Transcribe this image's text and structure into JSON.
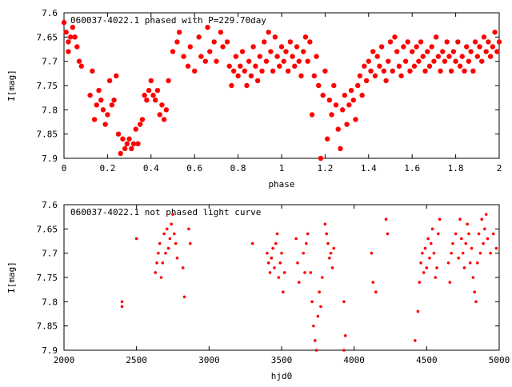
{
  "chart_data": [
    {
      "type": "scatter",
      "title": "060037-4022.1 phased with P=229.70day",
      "xlabel": "phase",
      "ylabel": "I[mag]",
      "xlim": [
        0,
        2
      ],
      "ylim": [
        7.6,
        7.9
      ],
      "y_inverted": true,
      "grid": false,
      "marker_color": "#ff0000",
      "xticks": [
        "0",
        "0.2",
        "0.4",
        "0.6",
        "0.8",
        "1",
        "1.2",
        "1.4",
        "1.6",
        "1.8",
        "2"
      ],
      "yticks": [
        "7.6",
        "7.65",
        "7.7",
        "7.75",
        "7.8",
        "7.85",
        "7.9"
      ],
      "points": [
        [
          0.0,
          7.62
        ],
        [
          0.01,
          7.64
        ],
        [
          0.02,
          7.66
        ],
        [
          0.02,
          7.68
        ],
        [
          0.03,
          7.65
        ],
        [
          0.04,
          7.63
        ],
        [
          0.05,
          7.65
        ],
        [
          0.06,
          7.67
        ],
        [
          0.07,
          7.7
        ],
        [
          0.08,
          7.71
        ],
        [
          0.12,
          7.77
        ],
        [
          0.13,
          7.72
        ],
        [
          0.14,
          7.82
        ],
        [
          0.15,
          7.79
        ],
        [
          0.16,
          7.76
        ],
        [
          0.17,
          7.78
        ],
        [
          0.18,
          7.8
        ],
        [
          0.19,
          7.83
        ],
        [
          0.2,
          7.81
        ],
        [
          0.21,
          7.74
        ],
        [
          0.22,
          7.79
        ],
        [
          0.23,
          7.78
        ],
        [
          0.24,
          7.73
        ],
        [
          0.25,
          7.85
        ],
        [
          0.26,
          7.89
        ],
        [
          0.27,
          7.86
        ],
        [
          0.28,
          7.88
        ],
        [
          0.29,
          7.87
        ],
        [
          0.3,
          7.86
        ],
        [
          0.31,
          7.88
        ],
        [
          0.32,
          7.87
        ],
        [
          0.33,
          7.84
        ],
        [
          0.34,
          7.87
        ],
        [
          0.35,
          7.83
        ],
        [
          0.36,
          7.82
        ],
        [
          0.37,
          7.77
        ],
        [
          0.38,
          7.78
        ],
        [
          0.39,
          7.76
        ],
        [
          0.4,
          7.74
        ],
        [
          0.41,
          7.77
        ],
        [
          0.42,
          7.78
        ],
        [
          0.43,
          7.76
        ],
        [
          0.44,
          7.81
        ],
        [
          0.45,
          7.79
        ],
        [
          0.46,
          7.82
        ],
        [
          0.47,
          7.8
        ],
        [
          0.48,
          7.74
        ],
        [
          0.5,
          7.68
        ],
        [
          0.52,
          7.66
        ],
        [
          0.53,
          7.64
        ],
        [
          0.55,
          7.69
        ],
        [
          0.57,
          7.71
        ],
        [
          0.58,
          7.67
        ],
        [
          0.6,
          7.72
        ],
        [
          0.62,
          7.65
        ],
        [
          0.63,
          7.69
        ],
        [
          0.65,
          7.7
        ],
        [
          0.66,
          7.63
        ],
        [
          0.67,
          7.68
        ],
        [
          0.69,
          7.66
        ],
        [
          0.7,
          7.7
        ],
        [
          0.72,
          7.64
        ],
        [
          0.73,
          7.67
        ],
        [
          0.75,
          7.66
        ],
        [
          0.76,
          7.71
        ],
        [
          0.77,
          7.75
        ],
        [
          0.78,
          7.72
        ],
        [
          0.79,
          7.69
        ],
        [
          0.8,
          7.73
        ],
        [
          0.81,
          7.71
        ],
        [
          0.82,
          7.68
        ],
        [
          0.83,
          7.72
        ],
        [
          0.84,
          7.75
        ],
        [
          0.85,
          7.7
        ],
        [
          0.86,
          7.73
        ],
        [
          0.87,
          7.67
        ],
        [
          0.88,
          7.71
        ],
        [
          0.89,
          7.74
        ],
        [
          0.9,
          7.69
        ],
        [
          0.91,
          7.72
        ],
        [
          0.92,
          7.66
        ],
        [
          0.93,
          7.7
        ],
        [
          0.94,
          7.64
        ],
        [
          0.95,
          7.68
        ],
        [
          0.96,
          7.72
        ],
        [
          0.97,
          7.65
        ],
        [
          0.98,
          7.69
        ],
        [
          0.99,
          7.71
        ],
        [
          1.0,
          7.67
        ],
        [
          1.01,
          7.7
        ],
        [
          1.02,
          7.68
        ],
        [
          1.03,
          7.72
        ],
        [
          1.04,
          7.66
        ],
        [
          1.05,
          7.69
        ],
        [
          1.06,
          7.71
        ],
        [
          1.07,
          7.67
        ],
        [
          1.08,
          7.7
        ],
        [
          1.09,
          7.73
        ],
        [
          1.1,
          7.68
        ],
        [
          1.11,
          7.65
        ],
        [
          1.12,
          7.7
        ],
        [
          1.13,
          7.66
        ],
        [
          1.14,
          7.81
        ],
        [
          1.15,
          7.73
        ],
        [
          1.16,
          7.69
        ],
        [
          1.17,
          7.75
        ],
        [
          1.18,
          7.9
        ],
        [
          1.19,
          7.77
        ],
        [
          1.2,
          7.72
        ],
        [
          1.21,
          7.86
        ],
        [
          1.22,
          7.78
        ],
        [
          1.23,
          7.81
        ],
        [
          1.24,
          7.75
        ],
        [
          1.25,
          7.79
        ],
        [
          1.26,
          7.84
        ],
        [
          1.27,
          7.88
        ],
        [
          1.28,
          7.8
        ],
        [
          1.29,
          7.77
        ],
        [
          1.3,
          7.83
        ],
        [
          1.31,
          7.79
        ],
        [
          1.32,
          7.76
        ],
        [
          1.33,
          7.78
        ],
        [
          1.34,
          7.82
        ],
        [
          1.35,
          7.75
        ],
        [
          1.36,
          7.73
        ],
        [
          1.37,
          7.77
        ],
        [
          1.38,
          7.71
        ],
        [
          1.39,
          7.74
        ],
        [
          1.4,
          7.7
        ],
        [
          1.41,
          7.72
        ],
        [
          1.42,
          7.68
        ],
        [
          1.43,
          7.73
        ],
        [
          1.44,
          7.69
        ],
        [
          1.45,
          7.71
        ],
        [
          1.46,
          7.67
        ],
        [
          1.47,
          7.72
        ],
        [
          1.48,
          7.74
        ],
        [
          1.49,
          7.7
        ],
        [
          1.5,
          7.66
        ],
        [
          1.51,
          7.72
        ],
        [
          1.52,
          7.65
        ],
        [
          1.53,
          7.68
        ],
        [
          1.54,
          7.71
        ],
        [
          1.55,
          7.73
        ],
        [
          1.56,
          7.67
        ],
        [
          1.57,
          7.7
        ],
        [
          1.58,
          7.66
        ],
        [
          1.59,
          7.72
        ],
        [
          1.6,
          7.68
        ],
        [
          1.61,
          7.71
        ],
        [
          1.62,
          7.67
        ],
        [
          1.63,
          7.7
        ],
        [
          1.64,
          7.66
        ],
        [
          1.65,
          7.69
        ],
        [
          1.66,
          7.72
        ],
        [
          1.67,
          7.68
        ],
        [
          1.68,
          7.71
        ],
        [
          1.69,
          7.67
        ],
        [
          1.7,
          7.7
        ],
        [
          1.71,
          7.65
        ],
        [
          1.72,
          7.69
        ],
        [
          1.73,
          7.72
        ],
        [
          1.74,
          7.68
        ],
        [
          1.75,
          7.7
        ],
        [
          1.76,
          7.66
        ],
        [
          1.77,
          7.69
        ],
        [
          1.78,
          7.72
        ],
        [
          1.79,
          7.68
        ],
        [
          1.8,
          7.7
        ],
        [
          1.81,
          7.66
        ],
        [
          1.82,
          7.71
        ],
        [
          1.83,
          7.69
        ],
        [
          1.84,
          7.72
        ],
        [
          1.85,
          7.67
        ],
        [
          1.86,
          7.7
        ],
        [
          1.87,
          7.68
        ],
        [
          1.88,
          7.72
        ],
        [
          1.89,
          7.66
        ],
        [
          1.9,
          7.69
        ],
        [
          1.91,
          7.67
        ],
        [
          1.92,
          7.7
        ],
        [
          1.93,
          7.65
        ],
        [
          1.94,
          7.68
        ],
        [
          1.95,
          7.66
        ],
        [
          1.96,
          7.69
        ],
        [
          1.97,
          7.67
        ],
        [
          1.98,
          7.64
        ],
        [
          1.99,
          7.68
        ],
        [
          2.0,
          7.66
        ]
      ]
    },
    {
      "type": "scatter",
      "title": "060037-4022.1 not phased light curve",
      "xlabel": "hjd0",
      "ylabel": "I[mag]",
      "xlim": [
        2000,
        5000
      ],
      "ylim": [
        7.6,
        7.9
      ],
      "y_inverted": true,
      "grid": false,
      "marker_color": "#ff0000",
      "xticks": [
        "2000",
        "2500",
        "3000",
        "3500",
        "4000",
        "4500",
        "5000"
      ],
      "yticks": [
        "7.6",
        "7.65",
        "7.7",
        "7.75",
        "7.8",
        "7.85",
        "7.9"
      ],
      "points": [
        [
          2400,
          7.8
        ],
        [
          2400,
          7.81
        ],
        [
          2500,
          7.67
        ],
        [
          2630,
          7.74
        ],
        [
          2640,
          7.72
        ],
        [
          2650,
          7.7
        ],
        [
          2660,
          7.68
        ],
        [
          2670,
          7.75
        ],
        [
          2680,
          7.72
        ],
        [
          2690,
          7.66
        ],
        [
          2700,
          7.7
        ],
        [
          2710,
          7.65
        ],
        [
          2720,
          7.69
        ],
        [
          2730,
          7.67
        ],
        [
          2740,
          7.64
        ],
        [
          2750,
          7.62
        ],
        [
          2760,
          7.66
        ],
        [
          2770,
          7.68
        ],
        [
          2780,
          7.71
        ],
        [
          2820,
          7.73
        ],
        [
          2830,
          7.79
        ],
        [
          2860,
          7.65
        ],
        [
          2870,
          7.68
        ],
        [
          3300,
          7.68
        ],
        [
          3400,
          7.7
        ],
        [
          3410,
          7.72
        ],
        [
          3420,
          7.74
        ],
        [
          3430,
          7.71
        ],
        [
          3440,
          7.69
        ],
        [
          3450,
          7.73
        ],
        [
          3460,
          7.68
        ],
        [
          3470,
          7.66
        ],
        [
          3480,
          7.75
        ],
        [
          3490,
          7.72
        ],
        [
          3500,
          7.7
        ],
        [
          3510,
          7.78
        ],
        [
          3520,
          7.74
        ],
        [
          3600,
          7.67
        ],
        [
          3610,
          7.72
        ],
        [
          3620,
          7.76
        ],
        [
          3650,
          7.7
        ],
        [
          3660,
          7.74
        ],
        [
          3670,
          7.68
        ],
        [
          3680,
          7.66
        ],
        [
          3700,
          7.74
        ],
        [
          3710,
          7.8
        ],
        [
          3720,
          7.85
        ],
        [
          3730,
          7.88
        ],
        [
          3740,
          7.9
        ],
        [
          3750,
          7.83
        ],
        [
          3760,
          7.78
        ],
        [
          3770,
          7.81
        ],
        [
          3780,
          7.75
        ],
        [
          3800,
          7.64
        ],
        [
          3810,
          7.66
        ],
        [
          3820,
          7.68
        ],
        [
          3830,
          7.71
        ],
        [
          3840,
          7.7
        ],
        [
          3850,
          7.73
        ],
        [
          3860,
          7.69
        ],
        [
          3930,
          7.8
        ],
        [
          3940,
          7.87
        ],
        [
          3930,
          7.9
        ],
        [
          4120,
          7.7
        ],
        [
          4130,
          7.76
        ],
        [
          4150,
          7.78
        ],
        [
          4220,
          7.63
        ],
        [
          4230,
          7.66
        ],
        [
          4420,
          7.88
        ],
        [
          4440,
          7.82
        ],
        [
          4450,
          7.76
        ],
        [
          4460,
          7.72
        ],
        [
          4470,
          7.7
        ],
        [
          4480,
          7.74
        ],
        [
          4490,
          7.69
        ],
        [
          4500,
          7.73
        ],
        [
          4510,
          7.67
        ],
        [
          4520,
          7.71
        ],
        [
          4530,
          7.68
        ],
        [
          4540,
          7.65
        ],
        [
          4550,
          7.7
        ],
        [
          4560,
          7.75
        ],
        [
          4570,
          7.73
        ],
        [
          4580,
          7.66
        ],
        [
          4590,
          7.63
        ],
        [
          4650,
          7.72
        ],
        [
          4660,
          7.76
        ],
        [
          4670,
          7.7
        ],
        [
          4680,
          7.68
        ],
        [
          4700,
          7.66
        ],
        [
          4720,
          7.71
        ],
        [
          4730,
          7.63
        ],
        [
          4740,
          7.67
        ],
        [
          4750,
          7.7
        ],
        [
          4760,
          7.73
        ],
        [
          4770,
          7.68
        ],
        [
          4780,
          7.64
        ],
        [
          4790,
          7.66
        ],
        [
          4800,
          7.72
        ],
        [
          4810,
          7.69
        ],
        [
          4820,
          7.75
        ],
        [
          4830,
          7.78
        ],
        [
          4840,
          7.8
        ],
        [
          4850,
          7.72
        ],
        [
          4860,
          7.66
        ],
        [
          4870,
          7.7
        ],
        [
          4880,
          7.63
        ],
        [
          4890,
          7.68
        ],
        [
          4900,
          7.65
        ],
        [
          4910,
          7.62
        ],
        [
          4920,
          7.67
        ],
        [
          4940,
          7.7
        ],
        [
          4960,
          7.66
        ],
        [
          4980,
          7.69
        ]
      ]
    }
  ]
}
